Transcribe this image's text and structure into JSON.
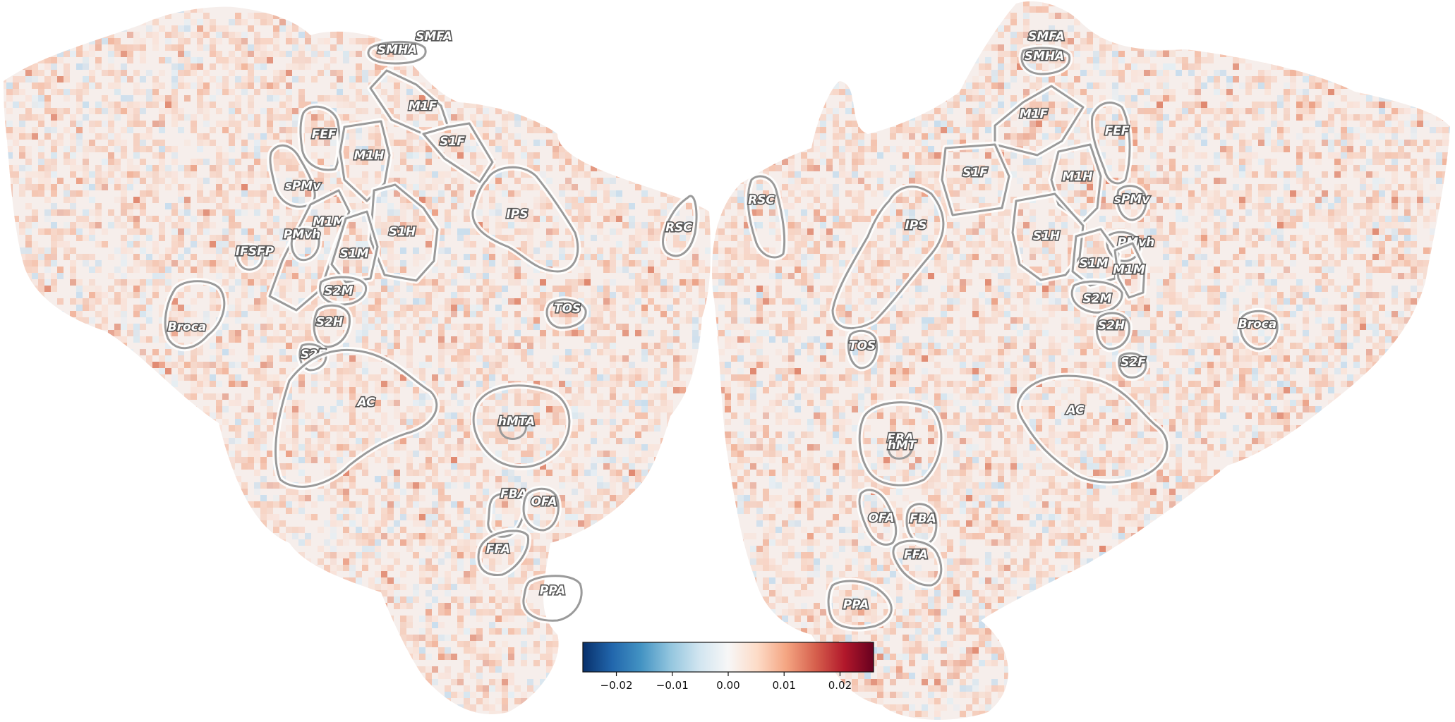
{
  "colormap": {
    "name": "RdBu_r",
    "stops": [
      "#08306b",
      "#2166ac",
      "#4393c3",
      "#92c5de",
      "#d1e5f0",
      "#f7f7f7",
      "#fddbc7",
      "#f4a582",
      "#d6604d",
      "#b2182b",
      "#67001f"
    ],
    "range": [
      -0.026,
      0.026
    ],
    "ticks": [
      {
        "value": -0.02,
        "label": "−0.02"
      },
      {
        "value": -0.01,
        "label": "−0.01"
      },
      {
        "value": 0.0,
        "label": "0.00"
      },
      {
        "value": 0.01,
        "label": "0.01"
      },
      {
        "value": 0.02,
        "label": "0.02"
      }
    ]
  },
  "hemispheres": [
    {
      "side": "left",
      "rois": [
        "SMFA",
        "SMHA",
        "M1F",
        "S1F",
        "FEF",
        "M1H",
        "sPMv",
        "M1M",
        "PMvh",
        "IFSFP",
        "S1H",
        "S1M",
        "IPS",
        "RSC",
        "S2M",
        "S2H",
        "Broca",
        "S2F",
        "TOS",
        "AC",
        "hMTA",
        "FBA",
        "OFA",
        "FFA",
        "PPA"
      ]
    },
    {
      "side": "right",
      "rois": [
        "SMFA",
        "SMHA",
        "M1F",
        "FEF",
        "RSC",
        "S1F",
        "M1H",
        "sPMv",
        "IPS",
        "S1H",
        "PMvh",
        "S1M",
        "M1M",
        "S2M",
        "Broca",
        "S2H",
        "TOS",
        "S2F",
        "AC",
        "EBA",
        "hMT",
        "OFA",
        "FBA",
        "FFA",
        "PPA"
      ]
    }
  ]
}
